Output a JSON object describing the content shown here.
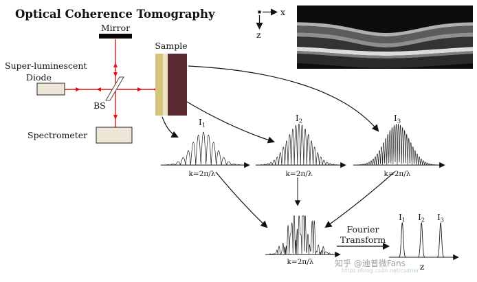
{
  "title": "Optical Coherence Tomography",
  "apparatus": {
    "mirror_label": "Mirror",
    "source_label_line1": "Super-luminescent",
    "source_label_line2": "Diode",
    "beamsplitter_label": "BS",
    "spectrometer_label": "Spectrometer",
    "sample_label": "Sample"
  },
  "scan_axes": {
    "x_label": "x",
    "z_label": "z"
  },
  "spectra": [
    {
      "sym": "I",
      "sub": "1",
      "axis_label": "k=2π/λ",
      "fringes": 15
    },
    {
      "sym": "I",
      "sub": "2",
      "axis_label": "k=2π/λ",
      "fringes": 25
    },
    {
      "sym": "I",
      "sub": "3",
      "axis_label": "k=2π/λ",
      "fringes": 38
    }
  ],
  "combined_spectrum": {
    "axis_label": "k=2π/λ"
  },
  "fourier": {
    "line1": "Fourier",
    "line2": "Transform"
  },
  "depth_profile": {
    "peaks": [
      {
        "sym": "I",
        "sub": "1"
      },
      {
        "sym": "I",
        "sub": "2"
      },
      {
        "sym": "I",
        "sub": "3"
      }
    ],
    "axis_label": "z"
  },
  "watermark": {
    "main": "知乎 @迪普微Fans",
    "sub": "https://blog.csdn.net/csdner"
  },
  "colors": {
    "beam": "#e01212",
    "sample_layer1": "#d6c47a",
    "sample_layer2": "#ece4c2",
    "sample_layer3": "#5a2a33",
    "box_fill": "#ece7d6"
  }
}
